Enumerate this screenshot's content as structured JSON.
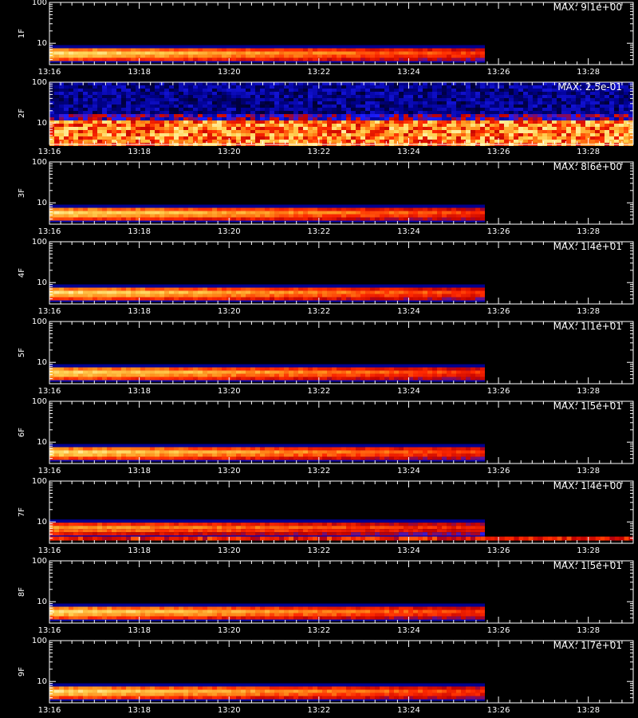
{
  "colors": {
    "background": "#000000",
    "axis": "#ffffff",
    "intensity_scale": [
      "#000000",
      "#000090",
      "#1e1eff",
      "#c00000",
      "#ff2a00",
      "#ff8c1a",
      "#ffd050",
      "#ffffc8"
    ]
  },
  "chart_data": [
    {
      "type": "heatmap",
      "panel": "1F",
      "ylabel": "1F",
      "max_label": "MAX: 9.1e+00",
      "max": 9.1,
      "xlim": [
        "13:16",
        "13:29"
      ],
      "x_ticks": [
        "13:16",
        "13:18",
        "13:20",
        "13:22",
        "13:24",
        "13:26",
        "13:28"
      ],
      "ylim": [
        3,
        100
      ],
      "y_scale": "log",
      "y_ticks": [
        "100",
        "10"
      ],
      "signal": {
        "start": "13:16",
        "end": "13:25.6",
        "band_center": 5.5,
        "level_start": 0.95,
        "level_end": 0.6
      }
    },
    {
      "type": "heatmap",
      "panel": "2F",
      "ylabel": "2F",
      "max_label": "MAX: 2.5e-01",
      "max": 0.25,
      "xlim": [
        "13:16",
        "13:29"
      ],
      "x_ticks": [
        "13:16",
        "13:18",
        "13:20",
        "13:22",
        "13:24",
        "13:26",
        "13:28"
      ],
      "ylim": [
        3,
        100
      ],
      "y_scale": "log",
      "y_ticks": [
        "100",
        "10"
      ],
      "signal": {
        "type": "noise",
        "band_center": 5.0,
        "level_start": 0.75,
        "level_end": 0.75
      }
    },
    {
      "type": "heatmap",
      "panel": "3F",
      "ylabel": "3F",
      "max_label": "MAX: 8.6e+00",
      "max": 8.6,
      "xlim": [
        "13:16",
        "13:29"
      ],
      "x_ticks": [
        "13:16",
        "13:18",
        "13:20",
        "13:22",
        "13:24",
        "13:26",
        "13:28"
      ],
      "ylim": [
        3,
        100
      ],
      "y_scale": "log",
      "y_ticks": [
        "100",
        "10"
      ],
      "signal": {
        "start": "13:16",
        "end": "13:25.6",
        "band_center": 5.5,
        "level_start": 0.95,
        "level_end": 0.6
      }
    },
    {
      "type": "heatmap",
      "panel": "4F",
      "ylabel": "4F",
      "max_label": "MAX: 1.4e+01",
      "max": 14,
      "xlim": [
        "13:16",
        "13:29"
      ],
      "x_ticks": [
        "13:16",
        "13:18",
        "13:20",
        "13:22",
        "13:24",
        "13:26",
        "13:28"
      ],
      "ylim": [
        3,
        100
      ],
      "y_scale": "log",
      "y_ticks": [
        "100",
        "10"
      ],
      "signal": {
        "start": "13:16",
        "end": "13:25.6",
        "band_center": 5.5,
        "level_start": 0.95,
        "level_end": 0.6
      }
    },
    {
      "type": "heatmap",
      "panel": "5F",
      "ylabel": "5F",
      "max_label": "MAX: 1.1e+01",
      "max": 11,
      "xlim": [
        "13:16",
        "13:29"
      ],
      "x_ticks": [
        "13:16",
        "13:18",
        "13:20",
        "13:22",
        "13:24",
        "13:26",
        "13:28"
      ],
      "ylim": [
        3,
        100
      ],
      "y_scale": "log",
      "y_ticks": [
        "100",
        "10"
      ],
      "signal": {
        "start": "13:16",
        "end": "13:25.6",
        "band_center": 5.5,
        "level_start": 0.95,
        "level_end": 0.6
      }
    },
    {
      "type": "heatmap",
      "panel": "6F",
      "ylabel": "6F",
      "max_label": "MAX: 1.5e+01",
      "max": 15,
      "xlim": [
        "13:16",
        "13:29"
      ],
      "x_ticks": [
        "13:16",
        "13:18",
        "13:20",
        "13:22",
        "13:24",
        "13:26",
        "13:28"
      ],
      "ylim": [
        3,
        100
      ],
      "y_scale": "log",
      "y_ticks": [
        "100",
        "10"
      ],
      "signal": {
        "start": "13:16",
        "end": "13:25.6",
        "band_center": 5.5,
        "level_start": 0.95,
        "level_end": 0.6
      }
    },
    {
      "type": "heatmap",
      "panel": "7F",
      "ylabel": "7F",
      "max_label": "MAX: 1.4e+00",
      "max": 1.4,
      "xlim": [
        "13:16",
        "13:29"
      ],
      "x_ticks": [
        "13:16",
        "13:18",
        "13:20",
        "13:22",
        "13:24",
        "13:26",
        "13:28"
      ],
      "ylim": [
        3,
        100
      ],
      "y_scale": "log",
      "y_ticks": [
        "100",
        "10"
      ],
      "signal": {
        "start": "13:16",
        "end": "13:25.6",
        "band_center": 7.0,
        "level_start": 0.8,
        "level_end": 0.55,
        "secondary_band": 4.0
      }
    },
    {
      "type": "heatmap",
      "panel": "8F",
      "ylabel": "8F",
      "max_label": "MAX: 1.5e+01",
      "max": 15,
      "xlim": [
        "13:16",
        "13:29"
      ],
      "x_ticks": [
        "13:16",
        "13:18",
        "13:20",
        "13:22",
        "13:24",
        "13:26",
        "13:28"
      ],
      "ylim": [
        3,
        100
      ],
      "y_scale": "log",
      "y_ticks": [
        "100",
        "10"
      ],
      "signal": {
        "start": "13:16",
        "end": "13:25.6",
        "band_center": 5.5,
        "level_start": 0.95,
        "level_end": 0.6
      }
    },
    {
      "type": "heatmap",
      "panel": "9F",
      "ylabel": "9F",
      "max_label": "MAX: 1.7e+01",
      "max": 17,
      "xlim": [
        "13:16",
        "13:29"
      ],
      "x_ticks": [
        "13:16",
        "13:18",
        "13:20",
        "13:22",
        "13:24",
        "13:26",
        "13:28"
      ],
      "ylim": [
        3,
        100
      ],
      "y_scale": "log",
      "y_ticks": [
        "100",
        "10"
      ],
      "signal": {
        "start": "13:16",
        "end": "13:25.6",
        "band_center": 5.5,
        "level_start": 0.95,
        "level_end": 0.6
      }
    }
  ]
}
